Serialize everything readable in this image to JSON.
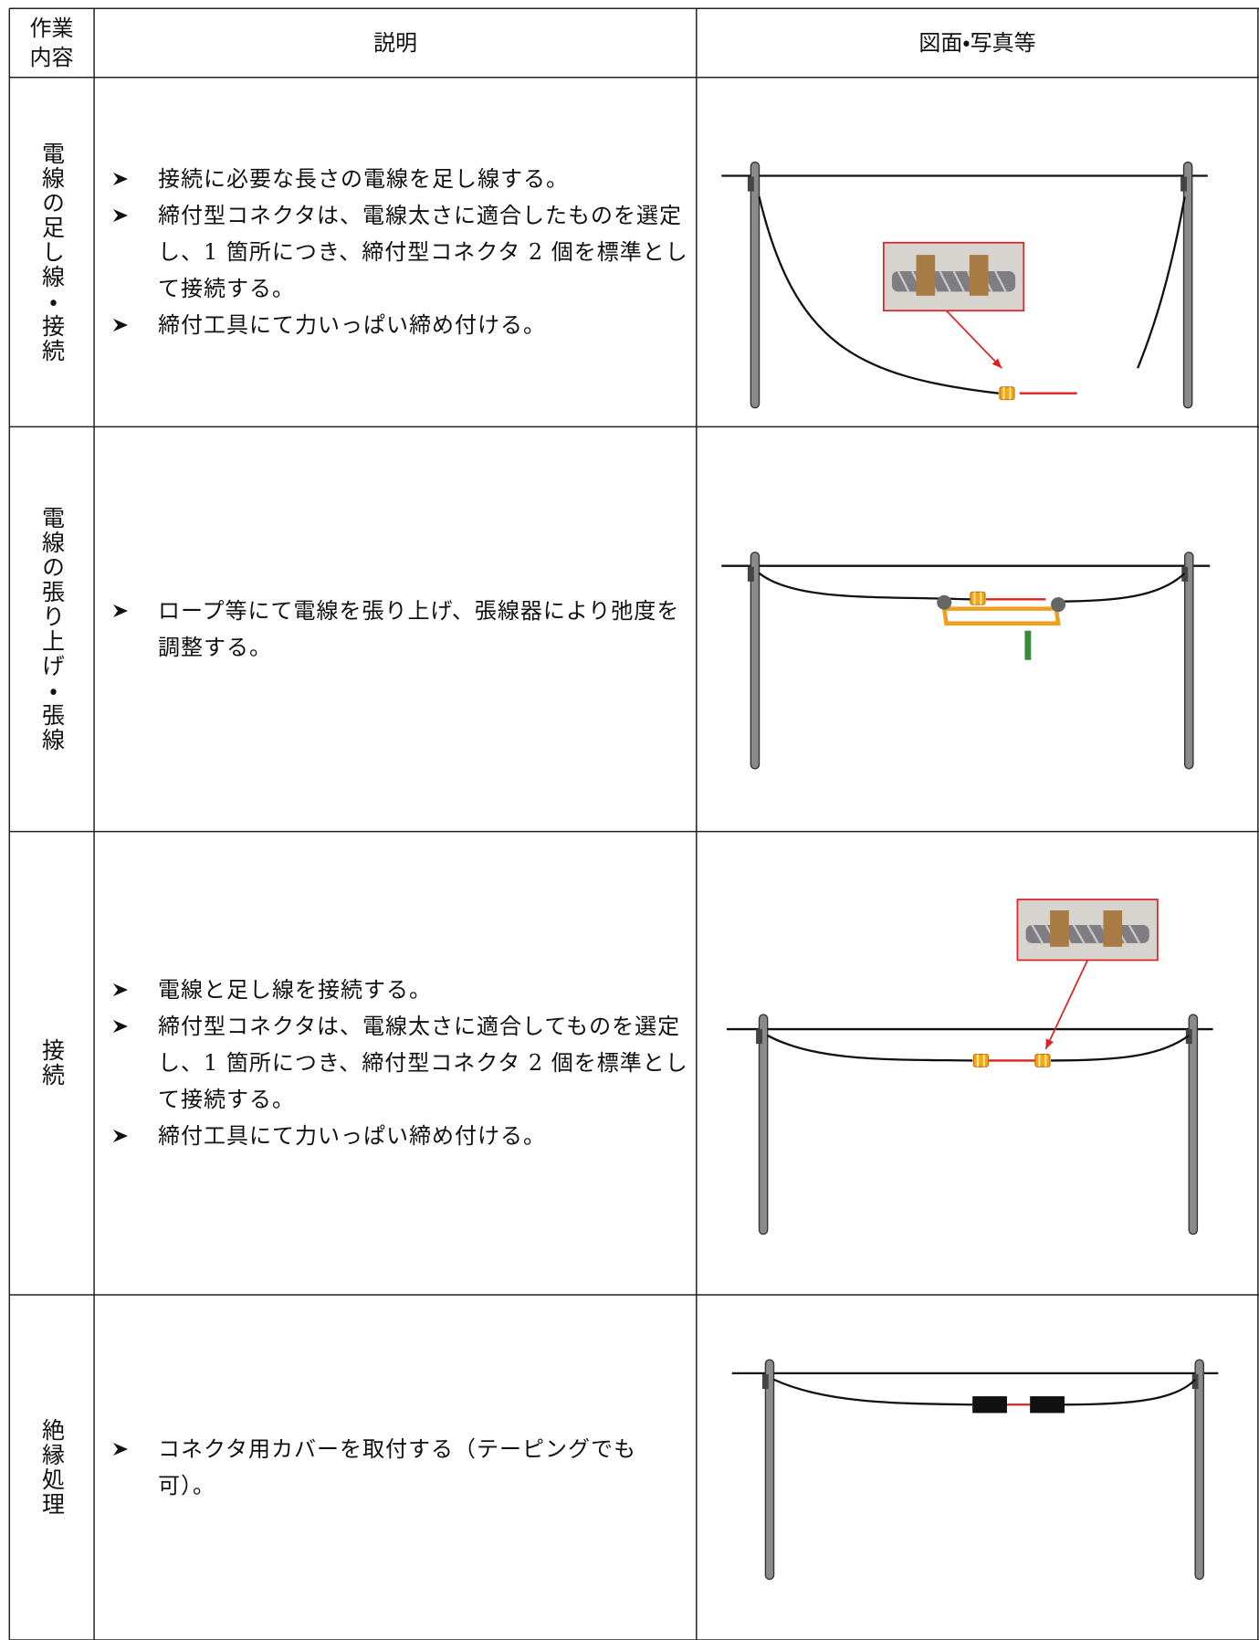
{
  "table": {
    "header": [
      [
        "作業",
        "内容"
      ],
      "説明",
      "図面・写真等"
    ],
    "rows": [
      {
        "task": "電線の足し線・接続",
        "items": [
          "接続に必要な長さの電線を足し線する。",
          "締付型コネクタは、電線太さに適合したものを選定し、1 箇所につき、締付型コネクタ 2 個を標準として接続する。",
          "締付工具にて力いっぱい締め付ける。"
        ]
      },
      {
        "task": "電線の張り上げ・張線",
        "items": [
          "ロープ等にて電線を張り上げ、張線器により弛度を調整する。"
        ]
      },
      {
        "task": "接続",
        "items": [
          "電線と足し線を接続する。",
          "締付型コネクタは、電線太さに適合してものを選定し、1 箇所につき、締付型コネクタ 2 個を標準として接続する。",
          "締付工具にて力いっぱい締め付ける。"
        ]
      },
      {
        "task": "絶縁処理",
        "items": [
          "コネクタ用カバーを取付する（テーピングでも可）。"
        ]
      }
    ]
  }
}
